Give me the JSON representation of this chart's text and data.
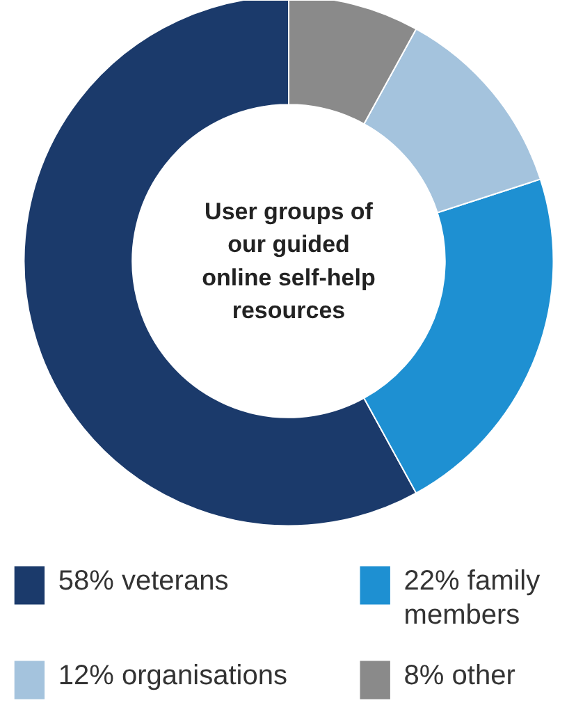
{
  "chart_data": {
    "type": "donut",
    "title": "User groups of our guided online self-help resources",
    "categories": [
      "58% veterans",
      "22% family members",
      "12% organisations",
      "8% other"
    ],
    "values": [
      58,
      22,
      12,
      8
    ],
    "colors": [
      "#1b3a6b",
      "#1e90d2",
      "#a4c3dd",
      "#8a8a8a"
    ],
    "legend": "bottom"
  }
}
